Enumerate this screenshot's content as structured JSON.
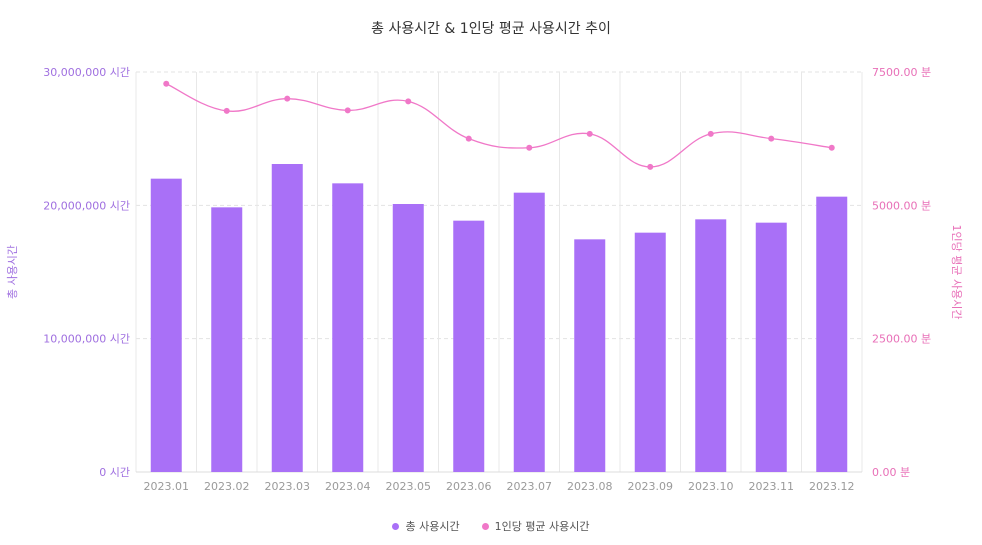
{
  "chart_data": {
    "type": "bar",
    "title": "총 사용시간 & 1인당 평균 사용시간 추이",
    "categories": [
      "2023.01",
      "2023.02",
      "2023.03",
      "2023.04",
      "2023.05",
      "2023.06",
      "2023.07",
      "2023.08",
      "2023.09",
      "2023.10",
      "2023.11",
      "2023.12"
    ],
    "left_axis": {
      "label": "총 사용시간",
      "ylim": [
        0,
        30000000
      ],
      "ticks": [
        {
          "value": 0,
          "label": "0 시간"
        },
        {
          "value": 10000000,
          "label": "10,000,000 시간"
        },
        {
          "value": 20000000,
          "label": "20,000,000 시간"
        },
        {
          "value": 30000000,
          "label": "30,000,000 시간"
        }
      ]
    },
    "right_axis": {
      "label": "1인당 평균 사용시간",
      "ylim": [
        0,
        7500
      ],
      "ticks": [
        {
          "value": 0,
          "label": "0.00 분"
        },
        {
          "value": 2500,
          "label": "2500.00 분"
        },
        {
          "value": 5000,
          "label": "5000.00 분"
        },
        {
          "value": 7500,
          "label": "7500.00 분"
        }
      ]
    },
    "series": [
      {
        "name": "총 사용시간",
        "type": "bar",
        "axis": "left",
        "color": "#a970f7",
        "values": [
          22000000,
          19850000,
          23100000,
          21650000,
          20100000,
          18850000,
          20950000,
          17450000,
          17950000,
          18950000,
          18700000,
          20650000
        ]
      },
      {
        "name": "1인당 평균 사용시간",
        "type": "line",
        "axis": "right",
        "color": "#f078c8",
        "values": [
          7280,
          6770,
          7000,
          6780,
          6950,
          6250,
          6080,
          6340,
          5720,
          6340,
          6250,
          6080
        ]
      }
    ],
    "grid": true,
    "legend_position": "bottom-center"
  }
}
